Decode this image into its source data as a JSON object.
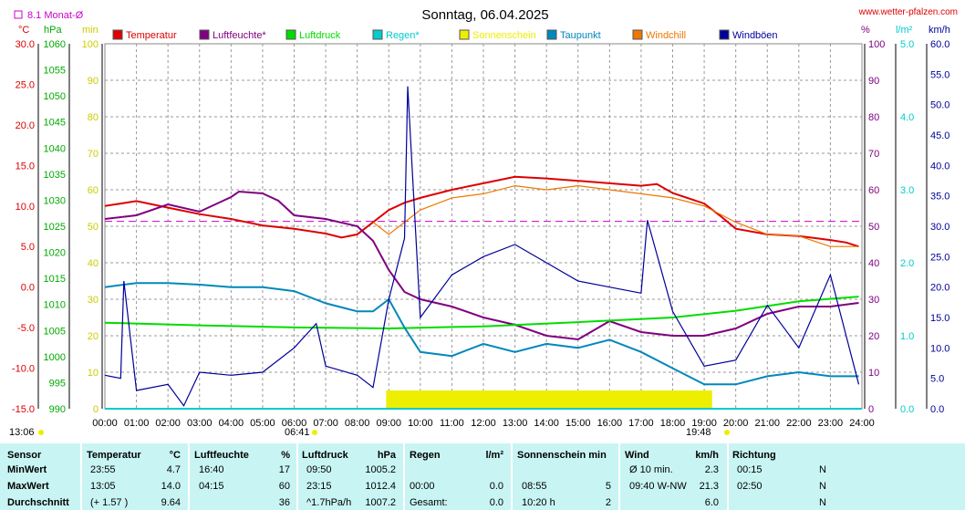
{
  "title": "Sonntag, 06.04.2025",
  "site": "www.wetter-pfalzen.com",
  "monthly_avg_label": "8.1 Monat-Ø",
  "colors": {
    "temp": "#dd0000",
    "hum": "#800080",
    "press": "#00dd00",
    "rain": "#00cccc",
    "sun": "#eeee00",
    "dew": "#0088bb",
    "wchill": "#ee7700",
    "gust": "#000099",
    "avg": "#cc00cc"
  },
  "units": {
    "temp": "°C",
    "press": "hPa",
    "sun": "min",
    "hum": "%",
    "rain": "l/m²",
    "wind": "km/h"
  },
  "axes": {
    "temp_ticks": [
      "30.0",
      "25.0",
      "20.0",
      "15.0",
      "10.0",
      "5.0",
      "0.0",
      "-5.0",
      "-10.0",
      "-15.0"
    ],
    "press_ticks": [
      "1060",
      "1055",
      "1050",
      "1045",
      "1040",
      "1035",
      "1030",
      "1025",
      "1020",
      "1015",
      "1010",
      "1005",
      "1000",
      "995",
      "990"
    ],
    "sun_ticks": [
      "100",
      "90",
      "80",
      "70",
      "60",
      "50",
      "40",
      "30",
      "20",
      "10",
      "0"
    ],
    "hum_ticks": [
      "100",
      "90",
      "80",
      "70",
      "60",
      "50",
      "40",
      "30",
      "20",
      "10",
      "0"
    ],
    "rain_ticks": [
      "5.0",
      "4.0",
      "3.0",
      "2.0",
      "1.0",
      "0.0"
    ],
    "wind_ticks": [
      "60.0",
      "55.0",
      "50.0",
      "45.0",
      "40.0",
      "35.0",
      "30.0",
      "25.0",
      "20.0",
      "15.0",
      "10.0",
      "5.0",
      "0.0"
    ],
    "time_ticks": [
      "00:00",
      "01:00",
      "02:00",
      "03:00",
      "04:00",
      "05:00",
      "06:00",
      "07:00",
      "08:00",
      "09:00",
      "10:00",
      "11:00",
      "12:00",
      "13:00",
      "14:00",
      "15:00",
      "16:00",
      "17:00",
      "18:00",
      "19:00",
      "20:00",
      "21:00",
      "22:00",
      "23:00",
      "24:00"
    ]
  },
  "markers": {
    "left_time": "13:06",
    "sunrise": "06:41",
    "sunset": "19:48"
  },
  "chart_data": {
    "type": "line",
    "title": "Sonntag, 06.04.2025",
    "x_range": [
      "00:00",
      "24:00"
    ],
    "monthly_avg_temp": 8.1,
    "sunshine_interval": [
      "08:55",
      "19:15"
    ],
    "sunshine_fill_pct": 5,
    "series": [
      {
        "name": "Temperatur",
        "unit": "°C",
        "axis": "temp",
        "x": [
          0,
          0.5,
          1,
          1.5,
          2,
          3,
          4,
          5,
          6,
          7,
          7.5,
          8,
          8.5,
          9,
          9.5,
          10,
          11,
          12,
          13,
          14,
          15,
          16,
          17,
          17.5,
          18,
          19,
          19.5,
          20,
          21,
          22,
          23,
          23.5,
          23.9
        ],
        "y": [
          10.0,
          10.3,
          10.6,
          10.2,
          9.8,
          9.0,
          8.4,
          7.6,
          7.2,
          6.6,
          6.1,
          6.5,
          8.0,
          9.5,
          10.4,
          11.0,
          12.0,
          12.8,
          13.6,
          13.4,
          13.1,
          12.8,
          12.5,
          12.7,
          11.6,
          10.3,
          8.8,
          7.2,
          6.5,
          6.3,
          5.8,
          5.5,
          5.0
        ]
      },
      {
        "name": "Luftfeuchte*",
        "unit": "%",
        "axis": "hum",
        "x": [
          0,
          1,
          2,
          3,
          4,
          4.25,
          5,
          5.5,
          6,
          7,
          8,
          8.5,
          9,
          9.5,
          10,
          11,
          12,
          13,
          14,
          15,
          16,
          17,
          18,
          19,
          20,
          21,
          22,
          23,
          23.9
        ],
        "y": [
          52,
          53,
          56,
          54,
          58,
          59.5,
          59,
          57,
          53,
          52,
          50,
          46,
          38,
          32,
          30,
          28,
          25,
          23,
          20,
          19,
          24,
          21,
          20,
          20,
          22,
          26,
          28,
          28,
          29
        ]
      },
      {
        "name": "Luftdruck",
        "unit": "hPa",
        "axis": "press",
        "x": [
          0,
          3,
          6,
          9,
          12,
          15,
          18,
          20,
          22,
          23.9
        ],
        "y": [
          1006.5,
          1006.0,
          1005.6,
          1005.4,
          1005.8,
          1006.6,
          1007.5,
          1008.8,
          1010.6,
          1011.5
        ]
      },
      {
        "name": "Regen*",
        "unit": "l/m²",
        "axis": "rain",
        "x": [
          0,
          24
        ],
        "y": [
          0.0,
          0.0
        ]
      },
      {
        "name": "Taupunkt",
        "unit": "°C",
        "axis": "temp",
        "x": [
          0,
          1,
          2,
          3,
          4,
          5,
          6,
          7,
          8,
          8.5,
          9,
          9.5,
          10,
          11,
          12,
          13,
          14,
          15,
          16,
          17,
          18,
          19,
          20,
          21,
          22,
          23,
          23.9
        ],
        "y": [
          0.0,
          0.5,
          0.5,
          0.3,
          0.0,
          0.0,
          -0.5,
          -2.0,
          -3.0,
          -3.0,
          -1.5,
          -5.0,
          -8.0,
          -8.5,
          -7.0,
          -8.0,
          -7.0,
          -7.5,
          -6.5,
          -8.0,
          -10.0,
          -12.0,
          -12.0,
          -11.0,
          -10.5,
          -11.0,
          -11.0
        ]
      },
      {
        "name": "Windchill",
        "unit": "°C",
        "axis": "temp",
        "x": [
          8.5,
          9,
          9.5,
          10,
          11,
          12,
          13,
          14,
          15,
          16,
          17,
          18,
          19,
          20,
          21,
          22,
          23,
          23.9
        ],
        "y": [
          8.0,
          6.5,
          8.0,
          9.5,
          11.0,
          11.5,
          12.5,
          12.0,
          12.5,
          12.0,
          11.5,
          11.0,
          10.0,
          8.0,
          6.5,
          6.3,
          5.0,
          5.0
        ]
      },
      {
        "name": "Windböen",
        "unit": "km/h",
        "axis": "wind",
        "x": [
          0,
          0.5,
          0.6,
          1,
          2,
          2.5,
          3,
          4,
          5,
          6,
          6.7,
          7,
          8,
          8.5,
          9,
          9.5,
          9.6,
          10,
          11,
          12,
          13,
          14,
          15,
          16,
          17,
          17.2,
          18,
          19,
          20,
          21,
          22,
          23,
          23.9
        ],
        "y": [
          5.5,
          5.0,
          21.0,
          3.0,
          4.0,
          0.5,
          6.0,
          5.5,
          6.0,
          10.0,
          14.0,
          7.0,
          5.5,
          3.5,
          18.0,
          28.0,
          53.0,
          15.0,
          22.0,
          25.0,
          27.0,
          24.0,
          21.0,
          20.0,
          19.0,
          31.0,
          16.0,
          7.0,
          8.0,
          17.0,
          10.0,
          22.0,
          4.0
        ]
      }
    ]
  },
  "legend": [
    {
      "key": "temp",
      "label": "Temperatur"
    },
    {
      "key": "hum",
      "label": "Luftfeuchte*"
    },
    {
      "key": "press",
      "label": "Luftdruck"
    },
    {
      "key": "rain",
      "label": "Regen*"
    },
    {
      "key": "sun",
      "label": "Sonnenschein"
    },
    {
      "key": "dew",
      "label": "Taupunkt"
    },
    {
      "key": "wchill",
      "label": "Windchill"
    },
    {
      "key": "gust",
      "label": "Windböen"
    }
  ],
  "stats": {
    "headers": {
      "sensor": "Sensor",
      "temp": "Temperatur",
      "temp_unit": "°C",
      "hum": "Luftfeuchte",
      "hum_unit": "%",
      "press": "Luftdruck",
      "press_unit": "hPa",
      "rain": "Regen",
      "rain_unit": "l/m²",
      "sun": "Sonnenschein min",
      "wind": "Wind",
      "wind_unit": "km/h",
      "dir": "Richtung"
    },
    "rows": [
      {
        "label": "MinWert",
        "temp_time": "23:55",
        "temp_val": "4.7",
        "hum_time": "16:40",
        "hum_val": "17",
        "press_time": "09:50",
        "press_val": "1005.2",
        "rain_time": "",
        "rain_val": "",
        "sun_time": "",
        "sun_val": "",
        "wind_time": "Ø 10 min.",
        "wind_val": "2.3",
        "dir_time": "00:15",
        "dir_val": "N"
      },
      {
        "label": "MaxWert",
        "temp_time": "13:05",
        "temp_val": "14.0",
        "hum_time": "04:15",
        "hum_val": "60",
        "press_time": "23:15",
        "press_val": "1012.4",
        "rain_time": "00:00",
        "rain_val": "0.0",
        "sun_time": "08:55",
        "sun_val": "5",
        "wind_time": "09:40   W-NW",
        "wind_val": "21.3",
        "dir_time": "02:50",
        "dir_val": "N"
      },
      {
        "label": "Durchschnitt",
        "temp_time": "(+ 1.57 )",
        "temp_val": "9.64",
        "hum_time": "",
        "hum_val": "36",
        "press_time": "^1.7hPa/h",
        "press_val": "1007.2",
        "rain_time": "Gesamt:",
        "rain_val": "0.0",
        "sun_time": "10:20 h",
        "sun_val": "2",
        "wind_time": "",
        "wind_val": "6.0",
        "dir_time": "",
        "dir_val": "N"
      }
    ]
  }
}
